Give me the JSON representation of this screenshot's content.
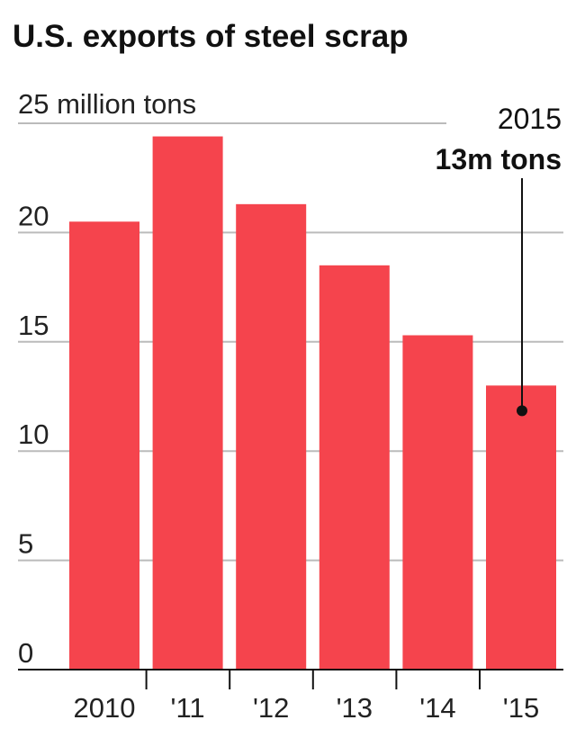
{
  "chart_data": {
    "type": "bar",
    "title": "U.S. exports of steel scrap",
    "ylabel": "",
    "xlabel": "",
    "unit_label": "25 million tons",
    "categories": [
      "2010",
      "'11",
      "'12",
      "'13",
      "'14",
      "'15"
    ],
    "values": [
      20.5,
      24.4,
      21.3,
      18.5,
      15.3,
      13.0
    ],
    "ylim": [
      0,
      25
    ],
    "yticks": [
      "0",
      "5",
      "10",
      "15",
      "20"
    ],
    "grid": true,
    "bar_color": "#f5444d",
    "annotation": {
      "category": "'15",
      "year_label": "2015",
      "value_label": "13m tons"
    }
  }
}
